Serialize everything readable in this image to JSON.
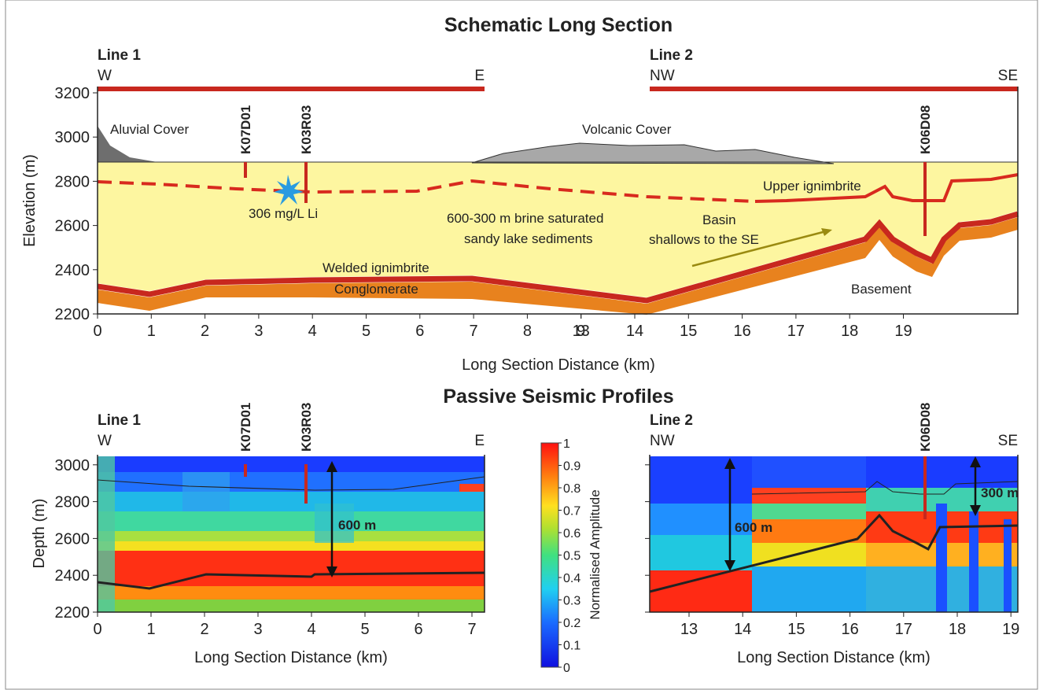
{
  "top": {
    "title": "Schematic Long Section",
    "line1": {
      "label": "Line 1",
      "left": "W",
      "right": "E"
    },
    "line2": {
      "label": "Line 2",
      "left": "NW",
      "right": "SE"
    },
    "y_label": "Elevation (m)",
    "x_label": "Long Section Distance (km)",
    "ylim": [
      2200,
      3200
    ],
    "yticks": [
      2200,
      2400,
      2600,
      2800,
      3000,
      3200
    ],
    "xticks": [
      0,
      1,
      2,
      3,
      4,
      5,
      6,
      7,
      8,
      9,
      13,
      14,
      15,
      16,
      17,
      18,
      19
    ],
    "wells": [
      "K07D01",
      "K03R03",
      "K06D08"
    ],
    "annotations": [
      "Aluvial Cover",
      "Volcanic Cover",
      "Upper ignimbrite",
      "306 mg/L Li",
      "600-300 m brine saturated",
      "sandy lake sediments",
      "Basin",
      "shallows to the SE",
      "Welded ignimbrite",
      "Conglomerate",
      "Basement"
    ]
  },
  "bottom_title": "Passive Seismic Profiles",
  "left": {
    "label": "Line 1",
    "left": "W",
    "right": "E",
    "wells": [
      "K07D01",
      "K03R03"
    ],
    "y_label": "Depth (m)",
    "x_label": "Long Section Distance (km)",
    "yticks": [
      2200,
      2400,
      2600,
      2800,
      3000
    ],
    "xticks": [
      0,
      1,
      2,
      3,
      4,
      5,
      6,
      7
    ],
    "annotations": [
      "600 m"
    ]
  },
  "right": {
    "label": "Line 2",
    "left": "NW",
    "right": "SE",
    "wells": [
      "K06D08"
    ],
    "x_label": "Long Section Distance (km)",
    "xticks": [
      13,
      14,
      15,
      16,
      17,
      18,
      19
    ],
    "annotations": [
      "600 m",
      "300 m"
    ]
  },
  "colorbar": {
    "label": "Normalised Amplitude",
    "ticks": [
      0,
      0.1,
      0.2,
      0.3,
      0.4,
      0.5,
      0.6,
      0.7,
      0.8,
      0.9,
      1
    ]
  }
}
